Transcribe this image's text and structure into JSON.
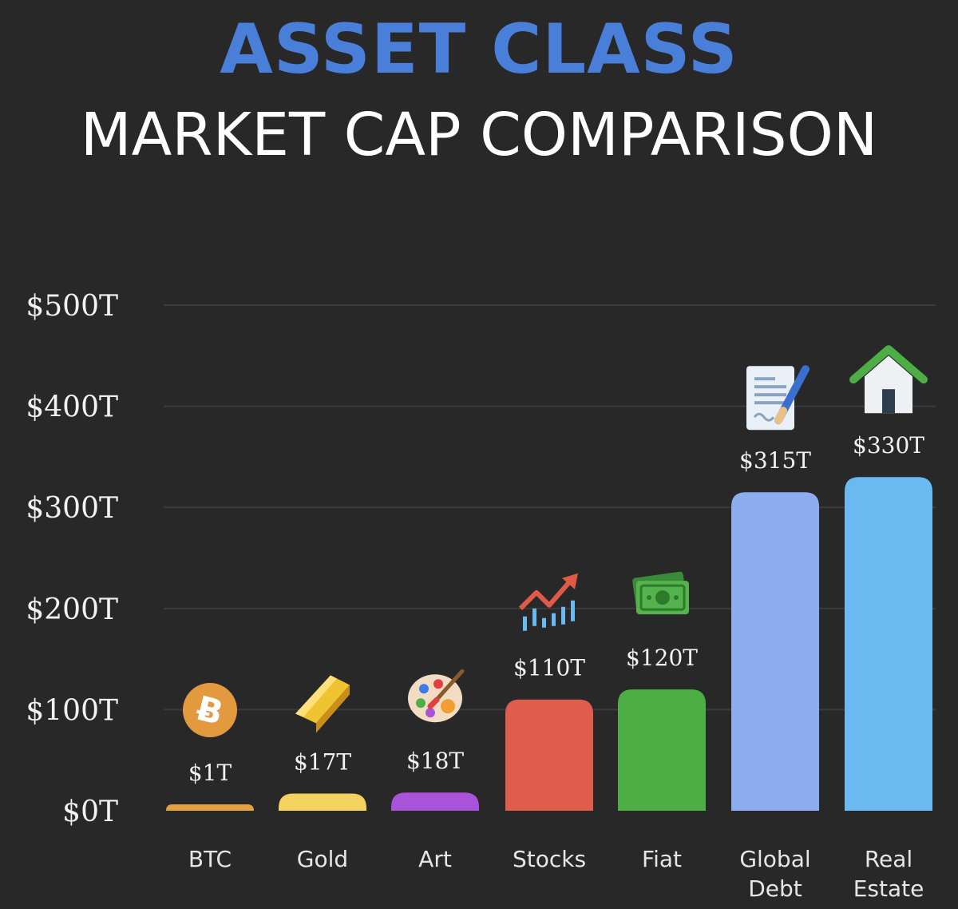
{
  "title": {
    "line1": "ASSET CLASS",
    "line2": "MARKET CAP COMPARISON"
  },
  "colors": {
    "background": "#282828",
    "title_accent": "#4a7fd9",
    "title_main": "#ffffff",
    "gridline": "#3b3b3b"
  },
  "chart_data": {
    "type": "bar",
    "title": "ASSET CLASS MARKET CAP COMPARISON",
    "xlabel": "",
    "ylabel": "",
    "ylim": [
      0,
      500
    ],
    "y_unit": "$T",
    "grid": true,
    "yticks": [
      0,
      100,
      200,
      300,
      400,
      500
    ],
    "ytick_labels": [
      "$0T",
      "$100T",
      "$200T",
      "$300T",
      "$400T",
      "$500T"
    ],
    "categories": [
      [
        "BTC"
      ],
      [
        "Gold"
      ],
      [
        "Art"
      ],
      [
        "Stocks"
      ],
      [
        "Fiat"
      ],
      [
        "Global",
        "Debt"
      ],
      [
        "Real",
        "Estate"
      ]
    ],
    "values": [
      1,
      17,
      18,
      110,
      120,
      315,
      330
    ],
    "value_labels": [
      "$1T",
      "$17T",
      "$18T",
      "$110T",
      "$120T",
      "$315T",
      "$330T"
    ],
    "bar_colors": [
      "#e3a142",
      "#f3d25f",
      "#a953db",
      "#df5d4c",
      "#4cae45",
      "#8eadee",
      "#6ab9f0"
    ],
    "icons": [
      "bitcoin-icon",
      "gold-bar-icon",
      "art-palette-icon",
      "stock-chart-icon",
      "cash-icon",
      "contract-icon",
      "house-icon"
    ]
  }
}
